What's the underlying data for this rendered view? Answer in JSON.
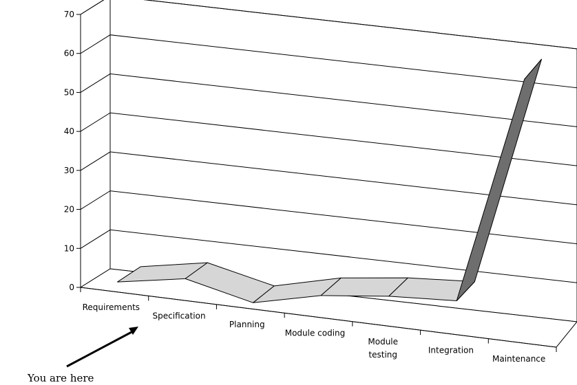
{
  "chart_data": {
    "type": "area",
    "style": "3d-ribbon",
    "title": "",
    "xlabel": "",
    "ylabel": "",
    "categories": [
      "Requirements",
      "Specification",
      "Planning",
      "Module coding",
      "Module testing",
      "Integration",
      "Maintenance"
    ],
    "category_lines": [
      [
        "Requirements"
      ],
      [
        "Specification"
      ],
      [
        "Planning"
      ],
      [
        "Module coding"
      ],
      [
        "Module",
        "testing"
      ],
      [
        "Integration"
      ],
      [
        "Maintenance"
      ]
    ],
    "values": [
      2,
      5,
      1,
      5,
      7,
      8,
      67
    ],
    "ylim": [
      0,
      70
    ],
    "yticks": [
      0,
      10,
      20,
      30,
      40,
      50,
      60,
      70
    ],
    "grid": true,
    "legend": "none",
    "colors": {
      "fill": "#d6d6d6",
      "last_face": "#6e6e6e",
      "stroke": "#000000"
    }
  },
  "annotation": {
    "text": "You are here"
  }
}
